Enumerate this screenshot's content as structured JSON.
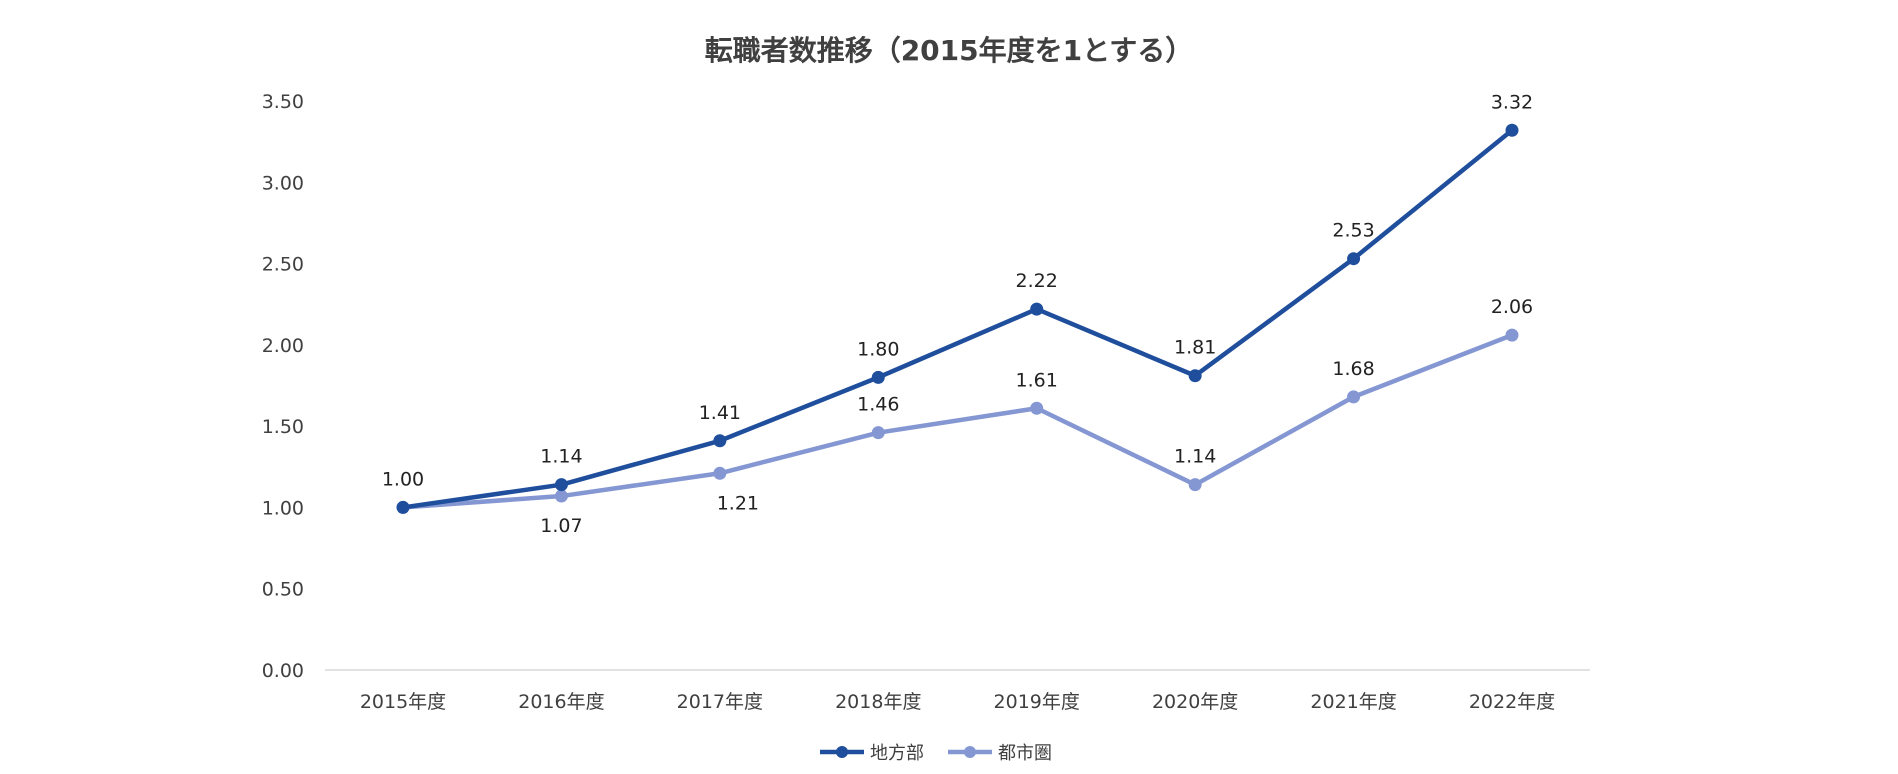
{
  "chart_data": {
    "type": "line",
    "title": "転職者数推移（2015年度を1とする）",
    "categories": [
      "2015年度",
      "2016年度",
      "2017年度",
      "2018年度",
      "2019年度",
      "2020年度",
      "2021年度",
      "2022年度"
    ],
    "series": [
      {
        "name": "地方部",
        "color": "#1f4e9c",
        "values": [
          1.0,
          1.14,
          1.41,
          1.8,
          2.22,
          1.81,
          2.53,
          3.32
        ],
        "labels": [
          "1.00",
          "1.14",
          "1.41",
          "1.80",
          "2.22",
          "1.81",
          "2.53",
          "3.32"
        ]
      },
      {
        "name": "都市圏",
        "color": "#8497d3",
        "values": [
          1.0,
          1.07,
          1.21,
          1.46,
          1.61,
          1.14,
          1.68,
          2.06
        ],
        "labels": [
          "",
          "1.07",
          "1.21",
          "1.46",
          "1.61",
          "1.14",
          "1.68",
          "2.06"
        ]
      }
    ],
    "y_ticks": [
      "0.00",
      "0.50",
      "1.00",
      "1.50",
      "2.00",
      "2.50",
      "3.00",
      "3.50"
    ],
    "ylim": [
      0,
      3.5
    ],
    "xlabel": "",
    "ylabel": "",
    "grid": false,
    "legend_position": "bottom-center"
  }
}
